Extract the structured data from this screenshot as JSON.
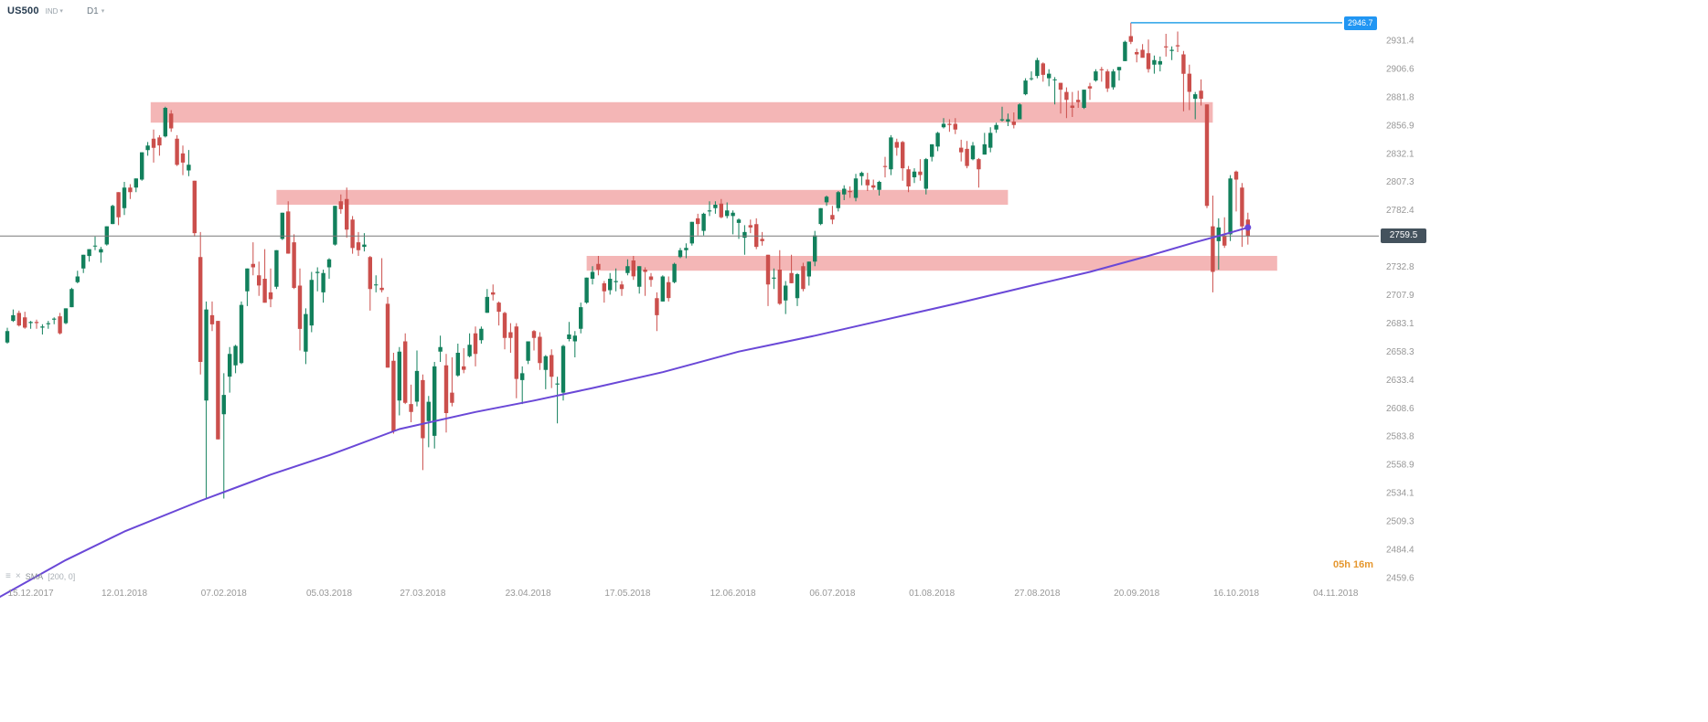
{
  "header": {
    "symbol": "US500",
    "instrument_type": "IND",
    "timeframe": "D1"
  },
  "indicator_legend": {
    "name": "SMA",
    "params": "[200, 0]"
  },
  "countdown": "05h 16m",
  "current_price_label": "2759.5",
  "alert_price_label": "2946.7",
  "price_scale": {
    "labels": [
      "2931.4",
      "2906.6",
      "2881.8",
      "2856.9",
      "2832.1",
      "2807.3",
      "2782.4",
      "2732.8",
      "2707.9",
      "2683.1",
      "2658.3",
      "2633.4",
      "2608.6",
      "2583.8",
      "2558.9",
      "2534.1",
      "2509.3",
      "2484.4",
      "2459.6"
    ]
  },
  "colors": {
    "bull": "#12805c",
    "bear": "#cb4f4c",
    "zone": "#f09d9d",
    "sma": "#6a48d7",
    "alert": "#2aa2e8",
    "alert_badge": "#2196f3",
    "current_line": "#787878",
    "current_badge_bg": "#44525d",
    "axis_text": "#979797",
    "countdown": "#e5972f",
    "symbol_text": "#253a4e"
  },
  "chart_data": {
    "type": "candlestick",
    "symbol": "US500",
    "timeframe": "D1",
    "y_axis": {
      "visible_min": 2459.6,
      "visible_max": 2931.4,
      "tick_step": 24.8,
      "grid": false
    },
    "levels": {
      "current_price": 2759.5,
      "alert_price": 2946.7,
      "alert_from_index": 192
    },
    "zones": [
      {
        "from_index": 24.5,
        "to_index": 206,
        "price_top": 2877,
        "price_bottom": 2859
      },
      {
        "from_index": 46,
        "to_index": 171,
        "price_top": 2800,
        "price_bottom": 2787
      },
      {
        "from_index": 99,
        "to_index": 217,
        "price_top": 2742,
        "price_bottom": 2729
      }
    ],
    "sma_200": [
      [
        -1.5,
        2442
      ],
      [
        10,
        2475
      ],
      [
        20,
        2500
      ],
      [
        33,
        2527
      ],
      [
        45,
        2550
      ],
      [
        55,
        2567
      ],
      [
        67,
        2590
      ],
      [
        80,
        2605
      ],
      [
        90,
        2615
      ],
      [
        100,
        2626
      ],
      [
        112,
        2640
      ],
      [
        125,
        2658
      ],
      [
        138,
        2672
      ],
      [
        150,
        2686
      ],
      [
        162,
        2700
      ],
      [
        175,
        2716
      ],
      [
        185,
        2728
      ],
      [
        195,
        2742
      ],
      [
        203,
        2754
      ],
      [
        208,
        2761
      ],
      [
        212,
        2767
      ]
    ],
    "x_axis": {
      "dates": [
        {
          "label": "15.12.2017",
          "index": 4
        },
        {
          "label": "12.01.2018",
          "index": 20
        },
        {
          "label": "07.02.2018",
          "index": 37
        },
        {
          "label": "05.03.2018",
          "index": 55
        },
        {
          "label": "27.03.2018",
          "index": 71
        },
        {
          "label": "23.04.2018",
          "index": 89
        },
        {
          "label": "17.05.2018",
          "index": 106
        },
        {
          "label": "12.06.2018",
          "index": 124
        },
        {
          "label": "06.07.2018",
          "index": 141
        },
        {
          "label": "01.08.2018",
          "index": 158
        },
        {
          "label": "27.08.2018",
          "index": 176
        },
        {
          "label": "20.09.2018",
          "index": 193
        },
        {
          "label": "16.10.2018",
          "index": 210
        },
        {
          "label": "04.11.2018",
          "index": 227
        }
      ]
    },
    "candles": [
      [
        2666,
        2679,
        2665,
        2676
      ],
      [
        2685,
        2695,
        2684,
        2690
      ],
      [
        2692,
        2694,
        2680,
        2681
      ],
      [
        2688,
        2693,
        2678,
        2679
      ],
      [
        2683,
        2685,
        2678,
        2684
      ],
      [
        2684,
        2686,
        2678,
        2683
      ],
      [
        2679,
        2682,
        2673,
        2680
      ],
      [
        2682,
        2685,
        2678,
        2683
      ],
      [
        2686,
        2688,
        2682,
        2687
      ],
      [
        2689,
        2692,
        2673,
        2674
      ],
      [
        2683,
        2696,
        2682,
        2696
      ],
      [
        2697,
        2714,
        2697,
        2713
      ],
      [
        2719,
        2729,
        2718,
        2724
      ],
      [
        2731,
        2743,
        2727,
        2743
      ],
      [
        2742,
        2748,
        2737,
        2748
      ],
      [
        2751,
        2759,
        2747,
        2751
      ],
      [
        2745,
        2750,
        2736,
        2748
      ],
      [
        2752,
        2768,
        2751,
        2768
      ],
      [
        2770,
        2787,
        2770,
        2786
      ],
      [
        2798,
        2798,
        2769,
        2776
      ],
      [
        2784,
        2807,
        2778,
        2802
      ],
      [
        2802,
        2805,
        2792,
        2798
      ],
      [
        2802,
        2810,
        2798,
        2810
      ],
      [
        2809,
        2833,
        2808,
        2833
      ],
      [
        2835,
        2842,
        2830,
        2839
      ],
      [
        2845,
        2853,
        2824,
        2837
      ],
      [
        2846,
        2848,
        2830,
        2839
      ],
      [
        2847,
        2873,
        2846,
        2872
      ],
      [
        2867,
        2870,
        2851,
        2854
      ],
      [
        2845,
        2848,
        2821,
        2822
      ],
      [
        2832,
        2839,
        2813,
        2824
      ],
      [
        2817,
        2835,
        2812,
        2822
      ],
      [
        2808,
        2808,
        2759,
        2762
      ],
      [
        2741,
        2763,
        2638,
        2649
      ],
      [
        2615,
        2702,
        2529,
        2695
      ],
      [
        2690,
        2702,
        2676,
        2682
      ],
      [
        2685,
        2685,
        2581,
        2581
      ],
      [
        2603,
        2639,
        2529,
        2620
      ],
      [
        2636,
        2662,
        2622,
        2656
      ],
      [
        2646,
        2664,
        2639,
        2663
      ],
      [
        2648,
        2702,
        2647,
        2699
      ],
      [
        2711,
        2731,
        2698,
        2731
      ],
      [
        2735,
        2754,
        2725,
        2732
      ],
      [
        2725,
        2737,
        2707,
        2716
      ],
      [
        2722,
        2748,
        2701,
        2701
      ],
      [
        2710,
        2731,
        2697,
        2704
      ],
      [
        2715,
        2747,
        2713,
        2747
      ],
      [
        2757,
        2780,
        2756,
        2780
      ],
      [
        2781,
        2790,
        2744,
        2744
      ],
      [
        2754,
        2761,
        2713,
        2714
      ],
      [
        2716,
        2731,
        2659,
        2678
      ],
      [
        2658,
        2696,
        2647,
        2691
      ],
      [
        2681,
        2728,
        2675,
        2721
      ],
      [
        2727,
        2732,
        2711,
        2728
      ],
      [
        2710,
        2730,
        2701,
        2727
      ],
      [
        2732,
        2740,
        2722,
        2739
      ],
      [
        2752,
        2786,
        2751,
        2786
      ],
      [
        2790,
        2796,
        2779,
        2783
      ],
      [
        2792,
        2802,
        2758,
        2765
      ],
      [
        2774,
        2777,
        2744,
        2749
      ],
      [
        2754,
        2763,
        2742,
        2747
      ],
      [
        2750,
        2762,
        2746,
        2752
      ],
      [
        2741,
        2742,
        2694,
        2713
      ],
      [
        2717,
        2725,
        2710,
        2717
      ],
      [
        2714,
        2740,
        2710,
        2712
      ],
      [
        2700,
        2706,
        2644,
        2644
      ],
      [
        2650,
        2657,
        2586,
        2588
      ],
      [
        2615,
        2662,
        2602,
        2658
      ],
      [
        2667,
        2674,
        2612,
        2613
      ],
      [
        2612,
        2629,
        2596,
        2605
      ],
      [
        2614,
        2659,
        2610,
        2641
      ],
      [
        2633,
        2638,
        2554,
        2582
      ],
      [
        2597,
        2619,
        2574,
        2614
      ],
      [
        2584,
        2649,
        2573,
        2645
      ],
      [
        2658,
        2672,
        2649,
        2662
      ],
      [
        2646,
        2656,
        2587,
        2604
      ],
      [
        2622,
        2653,
        2610,
        2613
      ],
      [
        2637,
        2665,
        2636,
        2657
      ],
      [
        2645,
        2661,
        2639,
        2642
      ],
      [
        2654,
        2674,
        2653,
        2664
      ],
      [
        2674,
        2680,
        2645,
        2656
      ],
      [
        2668,
        2680,
        2665,
        2678
      ],
      [
        2692,
        2713,
        2692,
        2706
      ],
      [
        2710,
        2717,
        2703,
        2708
      ],
      [
        2701,
        2702,
        2681,
        2693
      ],
      [
        2692,
        2693,
        2660,
        2670
      ],
      [
        2675,
        2683,
        2657,
        2670
      ],
      [
        2680,
        2683,
        2617,
        2634
      ],
      [
        2633,
        2645,
        2612,
        2639
      ],
      [
        2650,
        2666,
        2647,
        2667
      ],
      [
        2676,
        2677,
        2659,
        2670
      ],
      [
        2671,
        2675,
        2642,
        2648
      ],
      [
        2642,
        2655,
        2625,
        2654
      ],
      [
        2655,
        2660,
        2626,
        2636
      ],
      [
        2629,
        2636,
        2595,
        2630
      ],
      [
        2622,
        2664,
        2615,
        2663
      ],
      [
        2669,
        2684,
        2667,
        2673
      ],
      [
        2667,
        2676,
        2653,
        2672
      ],
      [
        2678,
        2701,
        2674,
        2697
      ],
      [
        2701,
        2723,
        2700,
        2723
      ],
      [
        2722,
        2733,
        2717,
        2728
      ],
      [
        2735,
        2742,
        2725,
        2730
      ],
      [
        2718,
        2720,
        2701,
        2711
      ],
      [
        2712,
        2727,
        2708,
        2722
      ],
      [
        2719,
        2731,
        2711,
        2720
      ],
      [
        2717,
        2720,
        2707,
        2713
      ],
      [
        2727,
        2739,
        2725,
        2733
      ],
      [
        2738,
        2742,
        2721,
        2724
      ],
      [
        2715,
        2733,
        2709,
        2733
      ],
      [
        2730,
        2732,
        2707,
        2728
      ],
      [
        2724,
        2727,
        2715,
        2721
      ],
      [
        2705,
        2710,
        2676,
        2690
      ],
      [
        2702,
        2725,
        2702,
        2724
      ],
      [
        2719,
        2724,
        2702,
        2705
      ],
      [
        2719,
        2736,
        2718,
        2735
      ],
      [
        2741,
        2749,
        2740,
        2747
      ],
      [
        2747,
        2753,
        2740,
        2749
      ],
      [
        2753,
        2772,
        2751,
        2772
      ],
      [
        2775,
        2779,
        2760,
        2770
      ],
      [
        2764,
        2780,
        2760,
        2779
      ],
      [
        2781,
        2790,
        2777,
        2782
      ],
      [
        2784,
        2790,
        2779,
        2787
      ],
      [
        2788,
        2792,
        2775,
        2776
      ],
      [
        2777,
        2789,
        2775,
        2782
      ],
      [
        2777,
        2782,
        2761,
        2780
      ],
      [
        2771,
        2775,
        2757,
        2774
      ],
      [
        2758,
        2769,
        2743,
        2763
      ],
      [
        2769,
        2774,
        2762,
        2767
      ],
      [
        2770,
        2775,
        2748,
        2750
      ],
      [
        2757,
        2763,
        2751,
        2755
      ],
      [
        2743,
        2743,
        2698,
        2717
      ],
      [
        2722,
        2731,
        2713,
        2723
      ],
      [
        2730,
        2747,
        2699,
        2700
      ],
      [
        2703,
        2720,
        2691,
        2716
      ],
      [
        2727,
        2743,
        2718,
        2718
      ],
      [
        2705,
        2727,
        2698,
        2726
      ],
      [
        2733,
        2736,
        2711,
        2713
      ],
      [
        2724,
        2737,
        2716,
        2737
      ],
      [
        2737,
        2764,
        2733,
        2760
      ],
      [
        2770,
        2784,
        2769,
        2784
      ],
      [
        2789,
        2795,
        2786,
        2794
      ],
      [
        2778,
        2786,
        2770,
        2774
      ],
      [
        2784,
        2799,
        2781,
        2798
      ],
      [
        2796,
        2804,
        2791,
        2801
      ],
      [
        2799,
        2803,
        2793,
        2798
      ],
      [
        2793,
        2814,
        2790,
        2810
      ],
      [
        2812,
        2816,
        2804,
        2815
      ],
      [
        2809,
        2815,
        2799,
        2804
      ],
      [
        2804,
        2809,
        2800,
        2802
      ],
      [
        2800,
        2808,
        2795,
        2807
      ],
      [
        2821,
        2829,
        2811,
        2820
      ],
      [
        2818,
        2848,
        2813,
        2846
      ],
      [
        2842,
        2845,
        2830,
        2837
      ],
      [
        2842,
        2843,
        2808,
        2819
      ],
      [
        2818,
        2821,
        2798,
        2803
      ],
      [
        2811,
        2819,
        2806,
        2816
      ],
      [
        2816,
        2827,
        2808,
        2813
      ],
      [
        2801,
        2828,
        2796,
        2827
      ],
      [
        2829,
        2840,
        2825,
        2840
      ],
      [
        2838,
        2851,
        2834,
        2850
      ],
      [
        2855,
        2863,
        2854,
        2858
      ],
      [
        2858,
        2862,
        2851,
        2857
      ],
      [
        2858,
        2863,
        2849,
        2853
      ],
      [
        2837,
        2844,
        2825,
        2833
      ],
      [
        2836,
        2843,
        2819,
        2821
      ],
      [
        2827,
        2842,
        2826,
        2839
      ],
      [
        2827,
        2828,
        2802,
        2818
      ],
      [
        2831,
        2850,
        2831,
        2840
      ],
      [
        2837,
        2855,
        2833,
        2850
      ],
      [
        2853,
        2859,
        2850,
        2857
      ],
      [
        2861,
        2873,
        2860,
        2862
      ],
      [
        2860,
        2867,
        2856,
        2862
      ],
      [
        2860,
        2868,
        2854,
        2857
      ],
      [
        2862,
        2876,
        2862,
        2875
      ],
      [
        2884,
        2898,
        2883,
        2896
      ],
      [
        2898,
        2904,
        2896,
        2898
      ],
      [
        2900,
        2916,
        2898,
        2914
      ],
      [
        2911,
        2912,
        2895,
        2901
      ],
      [
        2898,
        2906,
        2891,
        2902
      ],
      [
        2897,
        2899,
        2875,
        2897
      ],
      [
        2894,
        2894,
        2867,
        2888
      ],
      [
        2886,
        2890,
        2863,
        2879
      ],
      [
        2874,
        2886,
        2864,
        2872
      ],
      [
        2879,
        2887,
        2872,
        2877
      ],
      [
        2872,
        2888,
        2871,
        2888
      ],
      [
        2891,
        2894,
        2879,
        2889
      ],
      [
        2896,
        2906,
        2895,
        2904
      ],
      [
        2906,
        2908,
        2895,
        2905
      ],
      [
        2904,
        2906,
        2886,
        2889
      ],
      [
        2890,
        2906,
        2888,
        2904
      ],
      [
        2905,
        2908,
        2896,
        2908
      ],
      [
        2913,
        2931,
        2913,
        2930
      ],
      [
        2935,
        2946.7,
        2928,
        2930
      ],
      [
        2921,
        2924,
        2912,
        2919
      ],
      [
        2923,
        2928,
        2917,
        2916
      ],
      [
        2920,
        2932,
        2903,
        2906
      ],
      [
        2910,
        2918,
        2902,
        2914
      ],
      [
        2910,
        2917,
        2904,
        2913
      ],
      [
        2926,
        2937,
        2917,
        2925
      ],
      [
        2922,
        2926,
        2914,
        2923
      ],
      [
        2927,
        2939,
        2921,
        2926
      ],
      [
        2919,
        2922,
        2869,
        2902
      ],
      [
        2902,
        2910,
        2870,
        2886
      ],
      [
        2880,
        2886,
        2862,
        2884
      ],
      [
        2887,
        2897,
        2874,
        2880
      ],
      [
        2875,
        2875,
        2784,
        2786
      ],
      [
        2768,
        2795,
        2710,
        2728
      ],
      [
        2755,
        2775,
        2730,
        2767
      ],
      [
        2760,
        2776,
        2749,
        2751
      ],
      [
        2761,
        2813,
        2755,
        2810
      ],
      [
        2816,
        2817,
        2781,
        2809
      ],
      [
        2802,
        2806,
        2750,
        2768
      ],
      [
        2774,
        2780,
        2752,
        2759.5
      ]
    ]
  }
}
